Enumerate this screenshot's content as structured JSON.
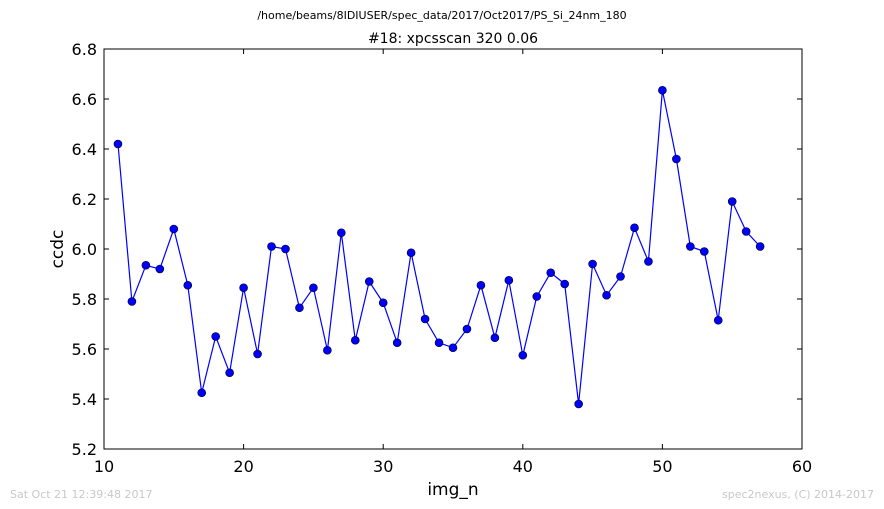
{
  "suptitle": "/home/beams/8IDIUSER/spec_data/2017/Oct2017/PS_Si_24nm_180",
  "footer": {
    "timestamp": "Sat Oct 21 12:39:48 2017",
    "credit": "spec2nexus, (C) 2014-2017"
  },
  "chart_data": {
    "type": "line",
    "title": "#18: xpcsscan 320 0.06",
    "xlabel": "img_n",
    "ylabel": "ccdc",
    "xlim": [
      10,
      60
    ],
    "ylim": [
      5.2,
      6.8
    ],
    "xticks": [
      "10",
      "20",
      "30",
      "40",
      "50",
      "60"
    ],
    "yticks": [
      "5.2",
      "5.4",
      "5.6",
      "5.8",
      "6.0",
      "6.2",
      "6.4",
      "6.6",
      "6.8"
    ],
    "grid": false,
    "series_color": "#0000ff",
    "marker": "circle",
    "x": [
      11,
      12,
      13,
      14,
      15,
      16,
      17,
      18,
      19,
      20,
      21,
      22,
      23,
      24,
      25,
      26,
      27,
      28,
      29,
      30,
      31,
      32,
      33,
      34,
      35,
      36,
      37,
      38,
      39,
      40,
      41,
      42,
      43,
      44,
      45,
      46,
      47,
      48,
      49,
      50,
      51,
      52,
      53,
      54,
      55,
      56,
      57
    ],
    "y": [
      6.42,
      5.79,
      5.935,
      5.92,
      6.08,
      5.855,
      5.425,
      5.65,
      5.505,
      5.845,
      5.58,
      6.01,
      6.0,
      5.765,
      5.845,
      5.595,
      6.065,
      5.635,
      5.87,
      5.785,
      5.625,
      5.985,
      5.72,
      5.625,
      5.605,
      5.68,
      5.855,
      5.645,
      5.875,
      5.575,
      5.81,
      5.905,
      5.86,
      5.38,
      5.94,
      5.815,
      5.89,
      6.085,
      5.95,
      6.635,
      6.36,
      6.01,
      5.99,
      5.715,
      6.19,
      6.07,
      6.01
    ]
  }
}
